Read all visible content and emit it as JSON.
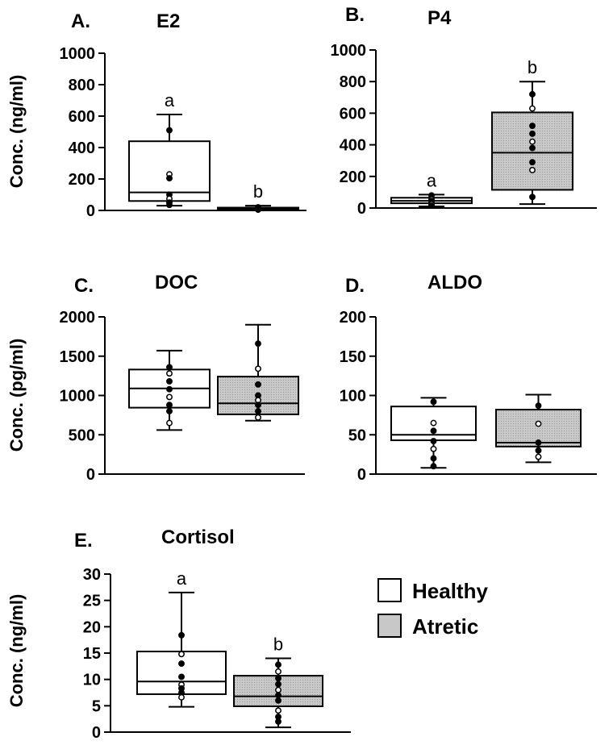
{
  "colors": {
    "healthy": "#ffffff",
    "atretic": "#c8c8c8",
    "stroke": "#000000"
  },
  "legend": {
    "items": [
      {
        "label": "Healthy",
        "fill": "#ffffff"
      },
      {
        "label": "Atretic",
        "fill": "#c8c8c8"
      }
    ]
  },
  "chart_data": [
    {
      "id": "A",
      "panel_label": "A.",
      "title": "E2",
      "type": "box",
      "ylabel": "Conc. (ng/ml)",
      "ylim": [
        0,
        1000
      ],
      "yticks": [
        0,
        200,
        400,
        600,
        800,
        1000
      ],
      "groups": [
        "Healthy",
        "Atretic"
      ],
      "boxes": [
        {
          "group": "Healthy",
          "min": 30,
          "q1": 60,
          "median": 115,
          "q3": 440,
          "max": 610,
          "letter": "a",
          "points": [
            510,
            230,
            205,
            100,
            75,
            50,
            35
          ]
        },
        {
          "group": "Atretic",
          "min": 3,
          "q1": 5,
          "median": 10,
          "q3": 18,
          "max": 30,
          "letter": "b",
          "points": [
            20,
            12,
            8,
            5
          ]
        }
      ]
    },
    {
      "id": "B",
      "panel_label": "B.",
      "title": "P4",
      "type": "box",
      "ylabel": "",
      "ylim": [
        0,
        1000
      ],
      "yticks": [
        0,
        200,
        400,
        600,
        800,
        1000
      ],
      "groups": [
        "Healthy",
        "Atretic"
      ],
      "boxes": [
        {
          "group": "Healthy",
          "min": 10,
          "q1": 30,
          "median": 45,
          "q3": 65,
          "max": 85,
          "letter": "a",
          "points": [
            80,
            55,
            45,
            35,
            25,
            15
          ]
        },
        {
          "group": "Atretic",
          "min": 25,
          "q1": 115,
          "median": 350,
          "q3": 605,
          "max": 800,
          "letter": "b",
          "points": [
            720,
            630,
            520,
            470,
            420,
            380,
            290,
            240,
            70
          ]
        }
      ]
    },
    {
      "id": "C",
      "panel_label": "C.",
      "title": "DOC",
      "type": "box",
      "ylabel": "Conc. (pg/ml)",
      "ylim": [
        0,
        2000
      ],
      "yticks": [
        0,
        500,
        1000,
        1500,
        2000
      ],
      "groups": [
        "Healthy",
        "Atretic"
      ],
      "boxes": [
        {
          "group": "Healthy",
          "min": 560,
          "q1": 845,
          "median": 1090,
          "q3": 1330,
          "max": 1570,
          "letter": "",
          "points": [
            1360,
            1280,
            1180,
            1080,
            980,
            880,
            800,
            650
          ]
        },
        {
          "group": "Atretic",
          "min": 680,
          "q1": 760,
          "median": 900,
          "q3": 1240,
          "max": 1900,
          "letter": "",
          "points": [
            1660,
            1340,
            1140,
            1000,
            940,
            880,
            800,
            720
          ]
        }
      ]
    },
    {
      "id": "D",
      "panel_label": "D.",
      "title": "ALDO",
      "type": "box",
      "ylabel": "",
      "ylim": [
        0,
        200
      ],
      "yticks": [
        0,
        50,
        100,
        150,
        200
      ],
      "groups": [
        "Healthy",
        "Atretic"
      ],
      "boxes": [
        {
          "group": "Healthy",
          "min": 8,
          "q1": 43,
          "median": 50,
          "q3": 86,
          "max": 97,
          "letter": "",
          "points": [
            92,
            65,
            55,
            42,
            32,
            20,
            10
          ]
        },
        {
          "group": "Atretic",
          "min": 15,
          "q1": 35,
          "median": 40,
          "q3": 82,
          "max": 101,
          "letter": "",
          "points": [
            87,
            64,
            40,
            30,
            22
          ]
        }
      ]
    },
    {
      "id": "E",
      "panel_label": "E.",
      "title": "Cortisol",
      "type": "box",
      "ylabel": "Conc. (ng/ml)",
      "ylim": [
        0,
        30
      ],
      "yticks": [
        0,
        5,
        10,
        15,
        20,
        25,
        30
      ],
      "groups": [
        "Healthy",
        "Atretic"
      ],
      "boxes": [
        {
          "group": "Healthy",
          "min": 4.8,
          "q1": 7.2,
          "median": 9.6,
          "q3": 15.3,
          "max": 26.5,
          "letter": "a",
          "points": [
            18.4,
            14.8,
            13,
            10.5,
            9,
            8.3,
            7.5,
            6.6
          ]
        },
        {
          "group": "Atretic",
          "min": 0.9,
          "q1": 4.9,
          "median": 6.8,
          "q3": 10.7,
          "max": 14,
          "letter": "b",
          "points": [
            12.8,
            11.5,
            10.2,
            9.1,
            8,
            7,
            6,
            4.1,
            2.9,
            2
          ]
        }
      ]
    }
  ]
}
